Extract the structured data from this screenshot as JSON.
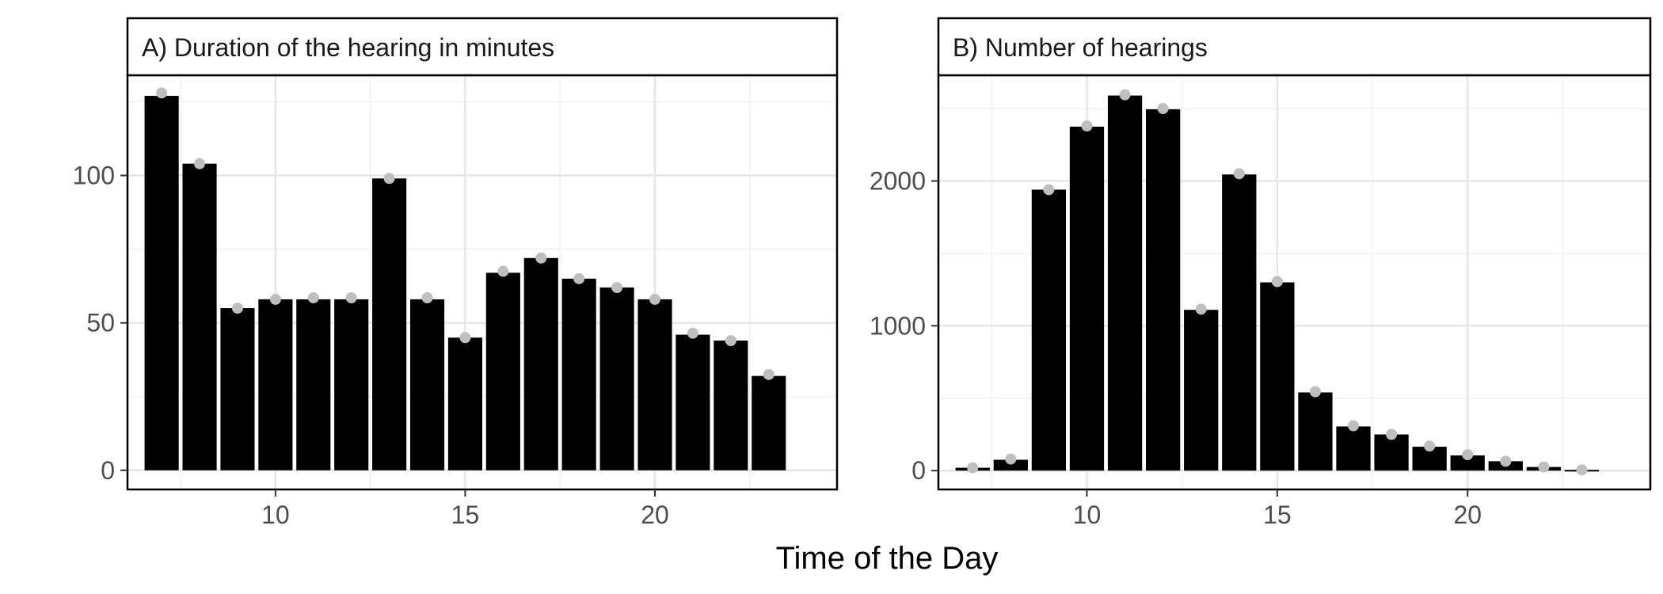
{
  "figure": {
    "xlabel": "Time of the Day"
  },
  "colors": {
    "bar": "#000000",
    "point": "#bfbfbf",
    "grid_major": "#e6e6e6",
    "grid_minor": "#f2f2f2",
    "panel_border": "#000000"
  },
  "chart_data": [
    {
      "type": "bar",
      "title": "A) Duration of the hearing in minutes",
      "xlabel": "Time of the Day",
      "ylabel": "",
      "x": [
        7,
        8,
        9,
        10,
        11,
        12,
        13,
        14,
        15,
        16,
        17,
        18,
        19,
        20,
        21,
        22,
        23
      ],
      "values": [
        127,
        104,
        55,
        58,
        58,
        58,
        99,
        58,
        45,
        67,
        72,
        65,
        62,
        58,
        46,
        44,
        32
      ],
      "points": [
        128,
        104,
        55,
        58,
        58.5,
        58.5,
        99,
        58.5,
        45,
        67.5,
        72,
        65,
        62,
        58,
        46.5,
        44,
        32.5
      ],
      "xlim": [
        6.1,
        24.8
      ],
      "ylim": [
        -6.5,
        134
      ],
      "xticks": [
        10,
        15,
        20
      ],
      "xtick_labels": [
        "10",
        "15",
        "20"
      ],
      "yticks": [
        0,
        50,
        100
      ],
      "ytick_labels": [
        "0",
        "50",
        "100"
      ],
      "grid": true
    },
    {
      "type": "bar",
      "title": "B) Number of hearings",
      "xlabel": "Time of the Day",
      "ylabel": "",
      "x": [
        7,
        8,
        9,
        10,
        11,
        12,
        13,
        14,
        15,
        16,
        17,
        18,
        19,
        20,
        21,
        22,
        23
      ],
      "values": [
        20,
        75,
        1940,
        2375,
        2590,
        2495,
        1110,
        2045,
        1300,
        540,
        305,
        250,
        165,
        105,
        65,
        25,
        5
      ],
      "points": [
        20,
        80,
        1940,
        2380,
        2595,
        2500,
        1115,
        2050,
        1305,
        545,
        310,
        250,
        170,
        110,
        65,
        25,
        5
      ],
      "xlim": [
        6.1,
        24.8
      ],
      "ylim": [
        -130,
        2730
      ],
      "xticks": [
        10,
        15,
        20
      ],
      "xtick_labels": [
        "10",
        "15",
        "20"
      ],
      "yticks": [
        0,
        1000,
        2000
      ],
      "ytick_labels": [
        "0",
        "1000",
        "2000"
      ],
      "grid": true
    }
  ]
}
